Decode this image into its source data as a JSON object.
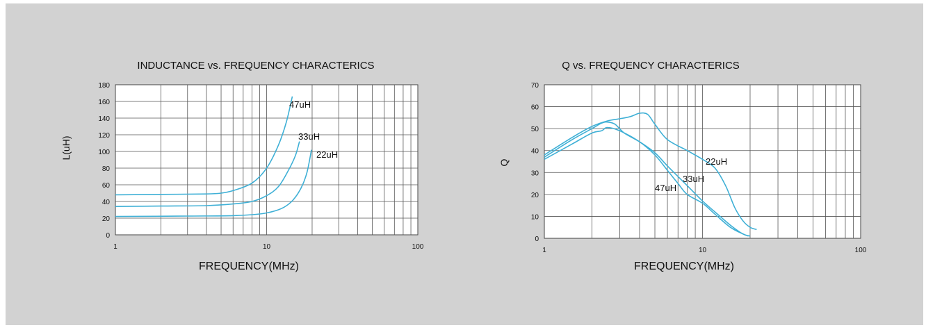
{
  "chart_data": [
    {
      "type": "line",
      "title": "INDUCTANCE vs. FREQUENCY CHARACTERICS",
      "xlabel": "FREQUENCY(MHz)",
      "ylabel": "L(uH)",
      "xscale": "log",
      "xlim": [
        1,
        100
      ],
      "ylim": [
        0,
        180
      ],
      "xticks": [
        "1",
        "10",
        "100"
      ],
      "yticks": [
        "0",
        "20",
        "40",
        "60",
        "80",
        "100",
        "120",
        "140",
        "160",
        "180"
      ],
      "grid": true,
      "series_color": "#3fb0d6",
      "series": [
        {
          "name": "47uH",
          "x": [
            1,
            2,
            4,
            5,
            6,
            8,
            10,
            12,
            13.5,
            14.8
          ],
          "y": [
            48,
            48.5,
            49,
            50,
            53,
            62,
            80,
            108,
            135,
            166
          ]
        },
        {
          "name": "33uH",
          "x": [
            1,
            2,
            4,
            6,
            8,
            10,
            12,
            14,
            15.5,
            16.5
          ],
          "y": [
            34,
            34.5,
            35,
            37,
            40,
            47,
            58,
            78,
            95,
            112
          ]
        },
        {
          "name": "22uH",
          "x": [
            1,
            3,
            6,
            9,
            11,
            13,
            15,
            17,
            18.5,
            19.8
          ],
          "y": [
            22,
            22.5,
            23,
            25,
            28,
            33,
            42,
            57,
            75,
            102
          ]
        }
      ]
    },
    {
      "type": "line",
      "title": "Q vs. FREQUENCY CHARACTERICS",
      "xlabel": "FREQUENCY(MHz)",
      "ylabel": "Q",
      "xscale": "log",
      "xlim": [
        1,
        100
      ],
      "ylim": [
        0,
        70
      ],
      "xticks": [
        "1",
        "10",
        "100"
      ],
      "yticks": [
        "0",
        "10",
        "20",
        "30",
        "40",
        "50",
        "60",
        "70"
      ],
      "grid": true,
      "series_color": "#3fb0d6",
      "series": [
        {
          "name": "22uH",
          "x": [
            1,
            1.5,
            2,
            2.5,
            3,
            3.5,
            4,
            4.5,
            5,
            6,
            8,
            10,
            12,
            14,
            16,
            18,
            20,
            22
          ],
          "y": [
            38,
            46,
            51,
            53.5,
            54.5,
            55.5,
            57,
            56.5,
            52,
            45,
            40,
            36,
            32,
            24,
            14,
            8,
            5,
            4
          ]
        },
        {
          "name": "33uH",
          "x": [
            1,
            1.5,
            2,
            2.3,
            2.5,
            2.8,
            3.2,
            4,
            5,
            6,
            8,
            10,
            12,
            15,
            18,
            20
          ],
          "y": [
            37,
            45,
            50,
            52.5,
            53,
            52,
            48,
            44,
            39,
            33,
            24,
            17,
            12,
            6,
            2,
            1
          ]
        },
        {
          "name": "47uH",
          "x": [
            1,
            1.5,
            2,
            2.3,
            2.5,
            3,
            4,
            5,
            6,
            7,
            8,
            10,
            12,
            15,
            18,
            19.5
          ],
          "y": [
            36,
            43,
            48,
            49,
            50.5,
            49,
            44,
            38,
            31,
            25,
            20,
            16,
            11,
            5,
            2,
            1
          ]
        }
      ]
    }
  ]
}
